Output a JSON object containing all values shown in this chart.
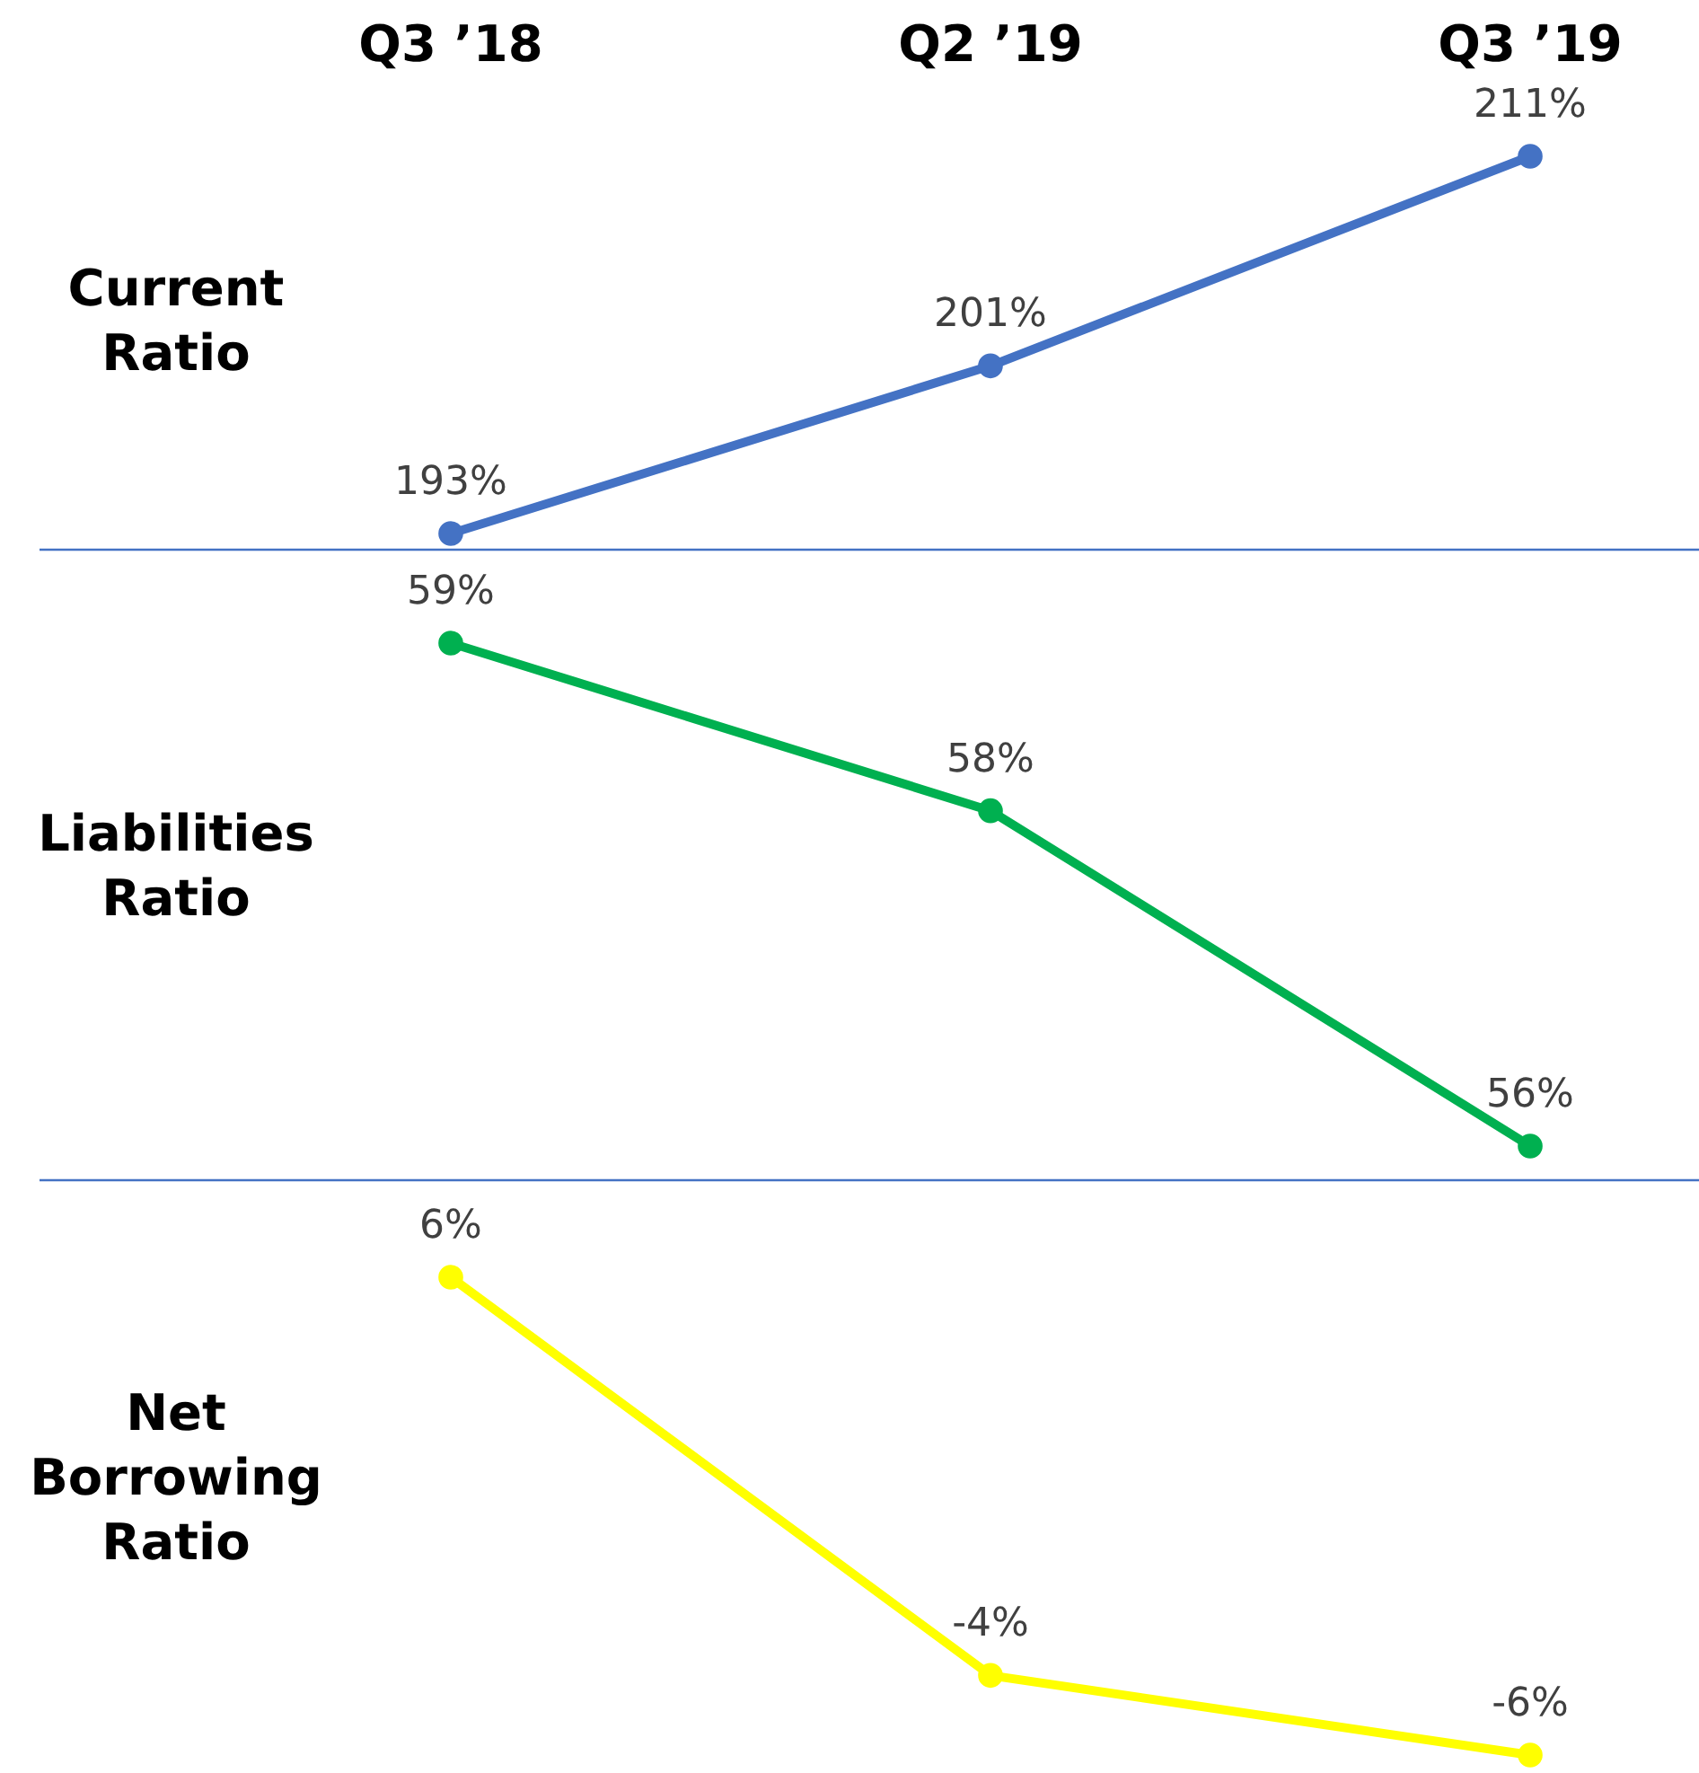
{
  "chart_data": [
    {
      "type": "line",
      "ylabel": "Current Ratio",
      "categories": [
        "Q3 ’18",
        "Q2 ’19",
        "Q3 ’19"
      ],
      "tick_labels": "x",
      "marker": "circle",
      "series": [
        {
          "color": "#4472c4",
          "values": [
            193,
            201,
            211
          ],
          "value_labels": [
            "193%",
            "201%",
            "211%"
          ]
        }
      ]
    },
    {
      "type": "line",
      "ylabel": "Liabilities Ratio",
      "marker": "circle",
      "series": [
        {
          "color": "#00b050",
          "values": [
            59,
            58,
            56
          ],
          "value_labels": [
            "59%",
            "58%",
            "56%"
          ]
        }
      ]
    },
    {
      "type": "line",
      "ylabel": "Net Borrowing Ratio",
      "marker": "circle",
      "series": [
        {
          "color": "#ffff00",
          "values": [
            6,
            -4,
            -6
          ],
          "value_labels": [
            "6%",
            "-4%",
            "-6%"
          ]
        }
      ]
    }
  ]
}
